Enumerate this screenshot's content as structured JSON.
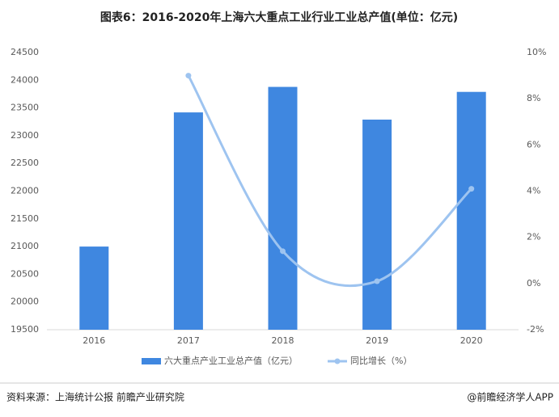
{
  "chart_data": {
    "type": "bar-line",
    "title": "图表6：2016-2020年上海六大重点工业行业工业总产值(单位：亿元)",
    "categories": [
      "2016",
      "2017",
      "2018",
      "2019",
      "2020"
    ],
    "series": [
      {
        "name": "六大重点产业工业总产值（亿元）",
        "color": "#3f87e0",
        "type": "bar",
        "values": [
          21000,
          23420,
          23880,
          23290,
          23790
        ]
      },
      {
        "name": "同比增长（%）",
        "color": "#9ec4f0",
        "type": "line",
        "axis": "y2",
        "values": [
          null,
          9.0,
          1.4,
          0.1,
          4.1
        ]
      }
    ],
    "ylim": [
      19500,
      24500
    ],
    "yticks": [
      19500,
      20000,
      20500,
      21000,
      21500,
      22000,
      22500,
      23000,
      23500,
      24000,
      24500
    ],
    "y2lim": [
      -2,
      10
    ],
    "y2ticks": [
      {
        "value": -2,
        "label": "-2%"
      },
      {
        "value": 0,
        "label": "0%"
      },
      {
        "value": 2,
        "label": "2%"
      },
      {
        "value": 4,
        "label": "4%"
      },
      {
        "value": 6,
        "label": "6%"
      },
      {
        "value": 8,
        "label": "8%"
      },
      {
        "value": 10,
        "label": "10%"
      }
    ],
    "source": "资料来源：上海统计公报 前瞻产业研究院",
    "credit": "@前瞻经济学人APP"
  }
}
